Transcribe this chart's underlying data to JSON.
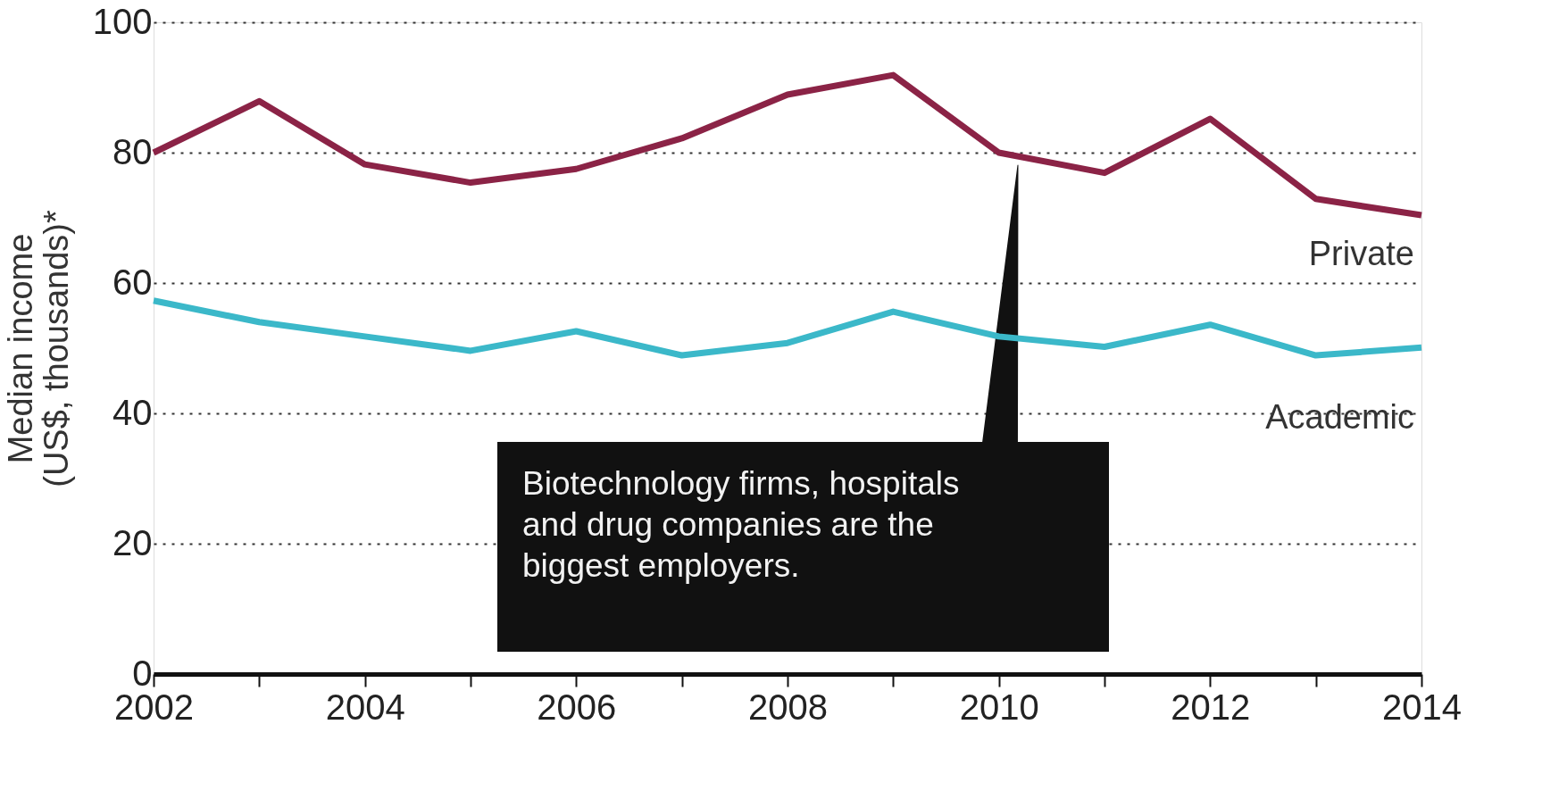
{
  "chart_data": {
    "type": "line",
    "ylabel": "Median income (US$, thousands)*",
    "x": [
      2002,
      2003,
      2004,
      2005,
      2006,
      2007,
      2008,
      2009,
      2010,
      2011,
      2012,
      2013,
      2014
    ],
    "series": [
      {
        "name": "Private",
        "color": "#8b2346",
        "values": [
          80,
          87.9,
          78.2,
          75.4,
          77.5,
          82.2,
          88.9,
          91.9,
          80,
          76.9,
          85.2,
          72.9,
          70.4
        ]
      },
      {
        "name": "Academic",
        "color": "#3bb8c9",
        "values": [
          57.3,
          54,
          51.8,
          49.6,
          52.6,
          48.9,
          50.8,
          55.6,
          51.8,
          50.2,
          53.6,
          48.9,
          50.1
        ]
      }
    ],
    "xlim": [
      2002,
      2014
    ],
    "xticks": [
      2002,
      {
        "value": 2003,
        "label": null
      },
      2004,
      {
        "value": 2005,
        "label": null
      },
      2006,
      {
        "value": 2007,
        "label": null
      },
      2008,
      {
        "value": 2009,
        "label": null
      },
      2010,
      {
        "value": 2011,
        "label": null
      },
      2012,
      {
        "value": 2013,
        "label": null
      },
      2014
    ],
    "ylim": [
      0,
      100
    ],
    "yticks": [
      0,
      20,
      40,
      60,
      80,
      100
    ],
    "grid": "y",
    "legend": false,
    "marker": "none",
    "line_style": "solid",
    "annotations": [
      "Biotechnology firms, hospitals and drug companies are the biggest employers."
    ]
  }
}
